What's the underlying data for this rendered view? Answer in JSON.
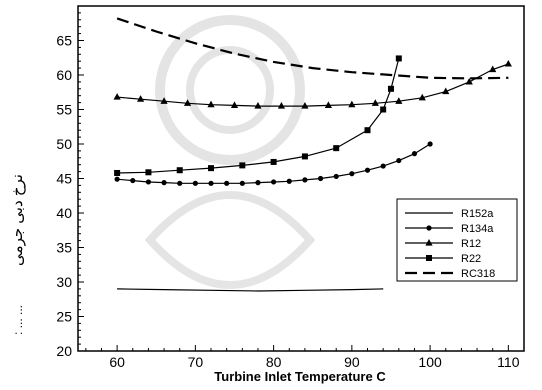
{
  "chart_data": {
    "type": "line",
    "title": "",
    "xlabel": "Turbine Inlet Temperature C",
    "ylabel": "نرخ دبی جرمی",
    "ylabel_dots": ":    ...    ...",
    "xlim": [
      55,
      112
    ],
    "ylim": [
      20,
      70
    ],
    "xticks": [
      60,
      70,
      80,
      90,
      100,
      110
    ],
    "yticks": [
      20,
      25,
      30,
      35,
      40,
      45,
      50,
      55,
      60,
      65
    ],
    "grid": false,
    "legend_position": "lower-right",
    "series": [
      {
        "name": "R152a",
        "marker": "none",
        "dash": "solid",
        "x": [
          60,
          66,
          72,
          78,
          84,
          90,
          94
        ],
        "y": [
          29.0,
          28.9,
          28.8,
          28.7,
          28.8,
          28.9,
          29.0
        ]
      },
      {
        "name": "R134a",
        "marker": "circle",
        "dash": "solid",
        "x": [
          60,
          62,
          64,
          66,
          68,
          70,
          72,
          74,
          76,
          78,
          80,
          82,
          84,
          86,
          88,
          90,
          92,
          94,
          96,
          98,
          100
        ],
        "y": [
          44.9,
          44.7,
          44.5,
          44.4,
          44.3,
          44.3,
          44.3,
          44.3,
          44.3,
          44.4,
          44.5,
          44.6,
          44.8,
          45.0,
          45.3,
          45.7,
          46.2,
          46.8,
          47.6,
          48.6,
          50.0
        ]
      },
      {
        "name": "R12",
        "marker": "triangle",
        "dash": "solid",
        "x": [
          60,
          63,
          66,
          69,
          72,
          75,
          78,
          81,
          84,
          87,
          90,
          93,
          96,
          99,
          102,
          105,
          108,
          110
        ],
        "y": [
          56.8,
          56.5,
          56.2,
          55.9,
          55.7,
          55.6,
          55.5,
          55.5,
          55.5,
          55.6,
          55.7,
          55.9,
          56.2,
          56.7,
          57.6,
          59.0,
          60.8,
          61.6
        ]
      },
      {
        "name": "R22",
        "marker": "square",
        "dash": "solid",
        "x": [
          60,
          64,
          68,
          72,
          76,
          80,
          84,
          88,
          92,
          94,
          95,
          96
        ],
        "y": [
          45.8,
          45.9,
          46.2,
          46.5,
          46.9,
          47.4,
          48.2,
          49.4,
          52.0,
          55.0,
          58.0,
          62.4
        ]
      },
      {
        "name": "RC318",
        "marker": "none",
        "dash": "dashed",
        "x": [
          60,
          65,
          70,
          75,
          80,
          85,
          90,
          95,
          100,
          105,
          110
        ],
        "y": [
          68.2,
          66.3,
          64.6,
          63.1,
          61.9,
          61.0,
          60.4,
          60.0,
          59.6,
          59.5,
          59.6
        ]
      }
    ]
  }
}
